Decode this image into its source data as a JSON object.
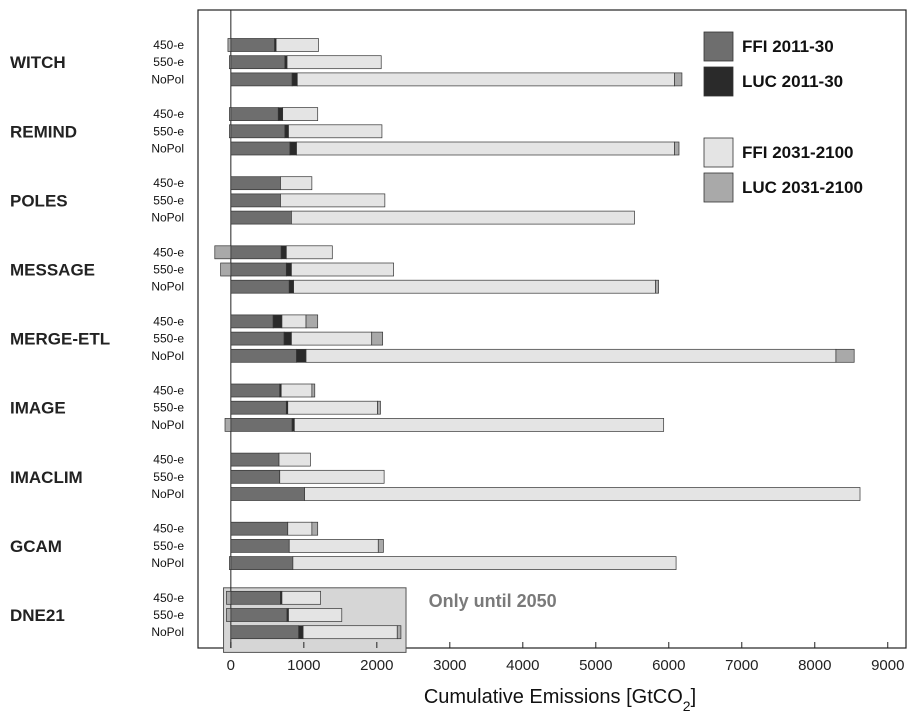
{
  "chart_data": {
    "type": "bar",
    "orientation": "horizontal",
    "stacked": true,
    "xlabel_main": "Cumulative Emissions [GtCO",
    "xlabel_sub": "2",
    "xlabel_end": "]",
    "xlim": [
      -450,
      9250
    ],
    "xticks": [
      0,
      1000,
      2000,
      3000,
      4000,
      5000,
      6000,
      7000,
      8000,
      9000
    ],
    "grid": false,
    "legend_position": "top-right",
    "components": [
      {
        "key": "ffi_early",
        "name": "FFI 2011-30",
        "color": "#6e6e6e"
      },
      {
        "key": "luc_early",
        "name": "LUC 2011-30",
        "color": "#2a2a2a"
      },
      {
        "key": "ffi_late",
        "name": "FFI 2031-2100",
        "color": "#e4e4e4"
      },
      {
        "key": "luc_late",
        "name": "LUC 2031-2100",
        "color": "#a9a9a9"
      }
    ],
    "annotation": "Only until 2050",
    "annotation_model": "DNE21",
    "models": [
      {
        "name": "WITCH",
        "scenarios": [
          {
            "label": "450-e",
            "ffi_early": 600,
            "luc_early": 20,
            "ffi_late": 580,
            "luc_late": -40
          },
          {
            "label": "550-e",
            "ffi_early": 740,
            "luc_early": 30,
            "ffi_late": 1290,
            "luc_late": -20
          },
          {
            "label": "NoPol",
            "ffi_early": 840,
            "luc_early": 70,
            "ffi_late": 5170,
            "luc_late": 100
          }
        ]
      },
      {
        "name": "REMIND",
        "scenarios": [
          {
            "label": "450-e",
            "ffi_early": 650,
            "luc_early": 60,
            "ffi_late": 480,
            "luc_late": -20
          },
          {
            "label": "550-e",
            "ffi_early": 740,
            "luc_early": 50,
            "ffi_late": 1280,
            "luc_late": -20
          },
          {
            "label": "NoPol",
            "ffi_early": 810,
            "luc_early": 90,
            "ffi_late": 5180,
            "luc_late": 60
          }
        ]
      },
      {
        "name": "POLES",
        "scenarios": [
          {
            "label": "450-e",
            "ffi_early": 680,
            "luc_early": 0,
            "ffi_late": 430,
            "luc_late": 0
          },
          {
            "label": "550-e",
            "ffi_early": 680,
            "luc_early": 0,
            "ffi_late": 1430,
            "luc_late": 0
          },
          {
            "label": "NoPol",
            "ffi_early": 830,
            "luc_early": 0,
            "ffi_late": 4700,
            "luc_late": 0
          }
        ]
      },
      {
        "name": "MESSAGE",
        "scenarios": [
          {
            "label": "450-e",
            "ffi_early": 690,
            "luc_early": 70,
            "ffi_late": 630,
            "luc_late": -220
          },
          {
            "label": "550-e",
            "ffi_early": 760,
            "luc_early": 70,
            "ffi_late": 1400,
            "luc_late": -140
          },
          {
            "label": "NoPol",
            "ffi_early": 800,
            "luc_early": 60,
            "ffi_late": 4960,
            "luc_late": 40
          }
        ]
      },
      {
        "name": "MERGE-ETL",
        "scenarios": [
          {
            "label": "450-e",
            "ffi_early": 580,
            "luc_early": 120,
            "ffi_late": 330,
            "luc_late": 160
          },
          {
            "label": "550-e",
            "ffi_early": 730,
            "luc_early": 100,
            "ffi_late": 1100,
            "luc_late": 150
          },
          {
            "label": "NoPol",
            "ffi_early": 900,
            "luc_early": 130,
            "ffi_late": 7260,
            "luc_late": 250
          }
        ]
      },
      {
        "name": "IMAGE",
        "scenarios": [
          {
            "label": "450-e",
            "ffi_early": 670,
            "luc_early": 20,
            "ffi_late": 420,
            "luc_late": 40
          },
          {
            "label": "550-e",
            "ffi_early": 760,
            "luc_early": 20,
            "ffi_late": 1230,
            "luc_late": 40
          },
          {
            "label": "NoPol",
            "ffi_early": 840,
            "luc_early": 30,
            "ffi_late": 5060,
            "luc_late": -80
          }
        ]
      },
      {
        "name": "IMACLIM",
        "scenarios": [
          {
            "label": "450-e",
            "ffi_early": 660,
            "luc_early": 0,
            "ffi_late": 430,
            "luc_late": 0
          },
          {
            "label": "550-e",
            "ffi_early": 670,
            "luc_early": 0,
            "ffi_late": 1430,
            "luc_late": 0
          },
          {
            "label": "NoPol",
            "ffi_early": 1010,
            "luc_early": 0,
            "ffi_late": 7610,
            "luc_late": 0
          }
        ]
      },
      {
        "name": "GCAM",
        "scenarios": [
          {
            "label": "450-e",
            "ffi_early": 780,
            "luc_early": 0,
            "ffi_late": 330,
            "luc_late": 80
          },
          {
            "label": "550-e",
            "ffi_early": 800,
            "luc_early": 0,
            "ffi_late": 1220,
            "luc_late": 70
          },
          {
            "label": "NoPol",
            "ffi_early": 850,
            "luc_early": 0,
            "ffi_late": 5250,
            "luc_late": -20
          }
        ]
      },
      {
        "name": "DNE21",
        "scenarios": [
          {
            "label": "450-e",
            "ffi_early": 680,
            "luc_early": 20,
            "ffi_late": 530,
            "luc_late": -60
          },
          {
            "label": "550-e",
            "ffi_early": 770,
            "luc_early": 20,
            "ffi_late": 730,
            "luc_late": -60
          },
          {
            "label": "NoPol",
            "ffi_early": 930,
            "luc_early": 60,
            "ffi_late": 1290,
            "luc_late": 50
          }
        ]
      }
    ]
  }
}
